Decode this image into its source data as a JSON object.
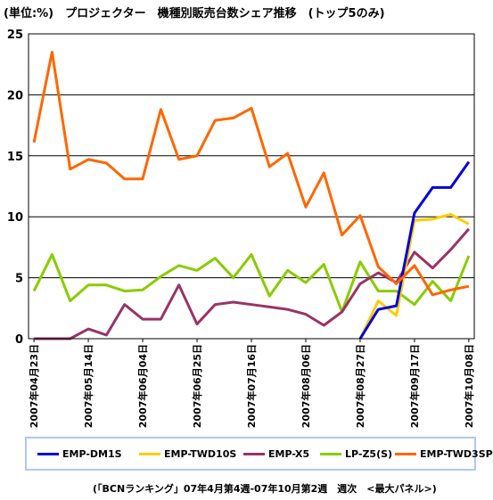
{
  "title": "(単位:%)　プロジェクター　機種別販売台数シェア推移　(トップ5のみ)",
  "source": "(「BCNランキング」07年4月第4週-07年10月第2週　週次　<最大パネル>)",
  "chart_data": {
    "type": "line",
    "ylim": [
      0,
      25
    ],
    "yticks": [
      0,
      5,
      10,
      15,
      20,
      25
    ],
    "grid": true,
    "legend_position": "bottom",
    "x": [
      "2007/04/23",
      "2007/04/30",
      "2007/05/07",
      "2007/05/14",
      "2007/05/21",
      "2007/05/28",
      "2007/06/04",
      "2007/06/11",
      "2007/06/18",
      "2007/06/25",
      "2007/07/02",
      "2007/07/09",
      "2007/07/16",
      "2007/07/23",
      "2007/07/30",
      "2007/08/06",
      "2007/08/13",
      "2007/08/20",
      "2007/08/27",
      "2007/09/03",
      "2007/09/10",
      "2007/09/17",
      "2007/09/24",
      "2007/10/01",
      "2007/10/08"
    ],
    "xtick_labels": [
      "2007年04月23日",
      "2007年05月14日",
      "2007年06月04日",
      "2007年06月25日",
      "2007年07月16日",
      "2007年08月06日",
      "2007年08月27日",
      "2007年09月17日",
      "2007年10月08日"
    ],
    "xtick_indices": [
      0,
      3,
      6,
      9,
      12,
      15,
      18,
      21,
      24
    ],
    "series": [
      {
        "name": "EMP-DM1S",
        "color": "#0000dd",
        "values": [
          null,
          null,
          null,
          null,
          null,
          null,
          null,
          null,
          null,
          null,
          null,
          null,
          null,
          null,
          null,
          null,
          null,
          null,
          0,
          2.4,
          2.7,
          10.3,
          12.4,
          12.4,
          14.5
        ]
      },
      {
        "name": "EMP-TWD10S",
        "color": "#ffcc00",
        "values": [
          null,
          null,
          null,
          null,
          null,
          null,
          null,
          null,
          null,
          null,
          null,
          null,
          null,
          null,
          null,
          null,
          null,
          null,
          0,
          3.1,
          1.9,
          9.7,
          9.8,
          10.2,
          9.4
        ]
      },
      {
        "name": "EMP-X5",
        "color": "#993366",
        "values": [
          0,
          0,
          0,
          0.8,
          0.3,
          2.8,
          1.6,
          1.6,
          4.4,
          1.2,
          2.8,
          3.0,
          2.8,
          2.6,
          2.4,
          2.0,
          1.1,
          2.2,
          4.5,
          5.4,
          4.6,
          7.1,
          5.8,
          7.3,
          9.0
        ]
      },
      {
        "name": "LP-Z5(S)",
        "color": "#88cc00",
        "values": [
          3.9,
          6.9,
          3.1,
          4.4,
          4.4,
          3.9,
          4.0,
          5.1,
          6.0,
          5.6,
          6.6,
          5.0,
          6.9,
          3.5,
          5.6,
          4.6,
          6.1,
          2.2,
          6.3,
          3.9,
          3.9,
          2.8,
          4.7,
          3.1,
          6.8
        ]
      },
      {
        "name": "EMP-TWD3SP",
        "color": "#ff6600",
        "values": [
          16.1,
          23.5,
          13.9,
          14.7,
          14.4,
          13.1,
          13.1,
          18.8,
          14.7,
          15.0,
          17.9,
          18.1,
          18.9,
          14.1,
          15.2,
          10.8,
          13.6,
          8.5,
          10.1,
          5.9,
          4.5,
          6.0,
          3.6,
          4.0,
          4.3
        ]
      }
    ]
  }
}
